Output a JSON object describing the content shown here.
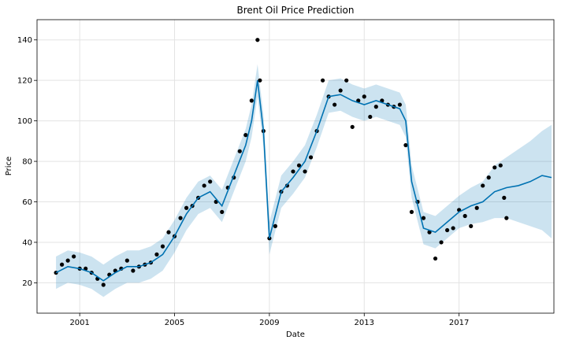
{
  "chart_data": {
    "type": "line",
    "title": "Brent Oil Price Prediction",
    "xlabel": "Date",
    "ylabel": "Price",
    "xlim": [
      1999.2,
      2021.0
    ],
    "ylim": [
      5,
      150
    ],
    "xticks": [
      2001,
      2005,
      2009,
      2013,
      2017
    ],
    "yticks": [
      20,
      40,
      60,
      80,
      100,
      120,
      140
    ],
    "grid": true,
    "colors": {
      "observed": "#000000",
      "forecast": "#0072B2",
      "interval": "#0072B2"
    },
    "series": [
      {
        "kind": "observed-points",
        "x": [
          2000.0,
          2000.25,
          2000.5,
          2000.75,
          2001.0,
          2001.25,
          2001.5,
          2001.75,
          2002.0,
          2002.25,
          2002.5,
          2002.75,
          2003.0,
          2003.25,
          2003.5,
          2003.75,
          2004.0,
          2004.25,
          2004.5,
          2004.75,
          2005.0,
          2005.25,
          2005.5,
          2005.75,
          2006.0,
          2006.25,
          2006.5,
          2006.75,
          2007.0,
          2007.25,
          2007.5,
          2007.75,
          2008.0,
          2008.25,
          2008.5,
          2008.6,
          2008.75,
          2009.0,
          2009.25,
          2009.5,
          2009.75,
          2010.0,
          2010.25,
          2010.5,
          2010.75,
          2011.0,
          2011.25,
          2011.5,
          2011.75,
          2012.0,
          2012.25,
          2012.5,
          2012.75,
          2013.0,
          2013.25,
          2013.5,
          2013.75,
          2014.0,
          2014.25,
          2014.5,
          2014.75,
          2015.0,
          2015.25,
          2015.5,
          2015.75,
          2016.0,
          2016.25,
          2016.5,
          2016.75,
          2017.0,
          2017.25,
          2017.5,
          2017.75,
          2018.0,
          2018.25,
          2018.5,
          2018.75,
          2018.9,
          2019.0
        ],
        "y": [
          25,
          29,
          31,
          33,
          27,
          27,
          25,
          22,
          19,
          24,
          26,
          27,
          31,
          26,
          28,
          29,
          30,
          34,
          38,
          45,
          43,
          52,
          57,
          58,
          62,
          68,
          70,
          60,
          55,
          67,
          72,
          85,
          93,
          110,
          140,
          120,
          95,
          42,
          48,
          65,
          68,
          75,
          78,
          75,
          82,
          95,
          120,
          112,
          108,
          115,
          120,
          97,
          110,
          112,
          102,
          107,
          110,
          108,
          107,
          108,
          88,
          55,
          60,
          52,
          45,
          32,
          40,
          46,
          47,
          56,
          53,
          48,
          57,
          68,
          72,
          77,
          78,
          62,
          52
        ]
      },
      {
        "kind": "forecast-line",
        "x": [
          2000.0,
          2000.5,
          2001.0,
          2001.5,
          2002.0,
          2002.5,
          2003.0,
          2003.5,
          2004.0,
          2004.5,
          2005.0,
          2005.5,
          2006.0,
          2006.5,
          2007.0,
          2007.5,
          2008.0,
          2008.25,
          2008.5,
          2008.75,
          2009.0,
          2009.5,
          2010.0,
          2010.5,
          2011.0,
          2011.5,
          2012.0,
          2012.5,
          2013.0,
          2013.5,
          2014.0,
          2014.5,
          2014.75,
          2015.0,
          2015.5,
          2016.0,
          2016.5,
          2017.0,
          2017.5,
          2018.0,
          2018.5,
          2019.0,
          2019.5,
          2020.0,
          2020.5,
          2020.9
        ],
        "y": [
          25,
          28,
          27,
          25,
          21,
          25,
          28,
          28,
          30,
          34,
          43,
          54,
          62,
          65,
          58,
          73,
          88,
          100,
          120,
          95,
          42,
          65,
          72,
          80,
          95,
          112,
          113,
          110,
          108,
          110,
          108,
          106,
          100,
          70,
          47,
          45,
          50,
          55,
          58,
          60,
          65,
          67,
          68,
          70,
          73,
          72
        ]
      },
      {
        "kind": "uncertainty-interval",
        "x": [
          2000.0,
          2000.5,
          2001.0,
          2001.5,
          2002.0,
          2002.5,
          2003.0,
          2003.5,
          2004.0,
          2004.5,
          2005.0,
          2005.5,
          2006.0,
          2006.5,
          2007.0,
          2007.5,
          2008.0,
          2008.25,
          2008.5,
          2008.75,
          2009.0,
          2009.5,
          2010.0,
          2010.5,
          2011.0,
          2011.5,
          2012.0,
          2012.5,
          2013.0,
          2013.5,
          2014.0,
          2014.5,
          2014.75,
          2015.0,
          2015.5,
          2016.0,
          2016.5,
          2017.0,
          2017.5,
          2018.0,
          2018.5,
          2019.0,
          2019.5,
          2020.0,
          2020.5,
          2020.9
        ],
        "lower": [
          17,
          20,
          19,
          17,
          13,
          17,
          20,
          20,
          22,
          26,
          35,
          46,
          54,
          57,
          50,
          65,
          80,
          92,
          112,
          87,
          34,
          57,
          64,
          72,
          87,
          104,
          105,
          102,
          100,
          102,
          100,
          98,
          92,
          62,
          39,
          37,
          42,
          47,
          49,
          50,
          52,
          52,
          50,
          48,
          46,
          42
        ],
        "upper": [
          33,
          36,
          35,
          33,
          29,
          33,
          36,
          36,
          38,
          42,
          51,
          62,
          70,
          73,
          66,
          81,
          96,
          108,
          128,
          103,
          50,
          73,
          80,
          88,
          103,
          120,
          121,
          118,
          116,
          118,
          116,
          114,
          108,
          78,
          55,
          53,
          58,
          63,
          67,
          70,
          78,
          82,
          86,
          90,
          95,
          98
        ]
      }
    ]
  }
}
